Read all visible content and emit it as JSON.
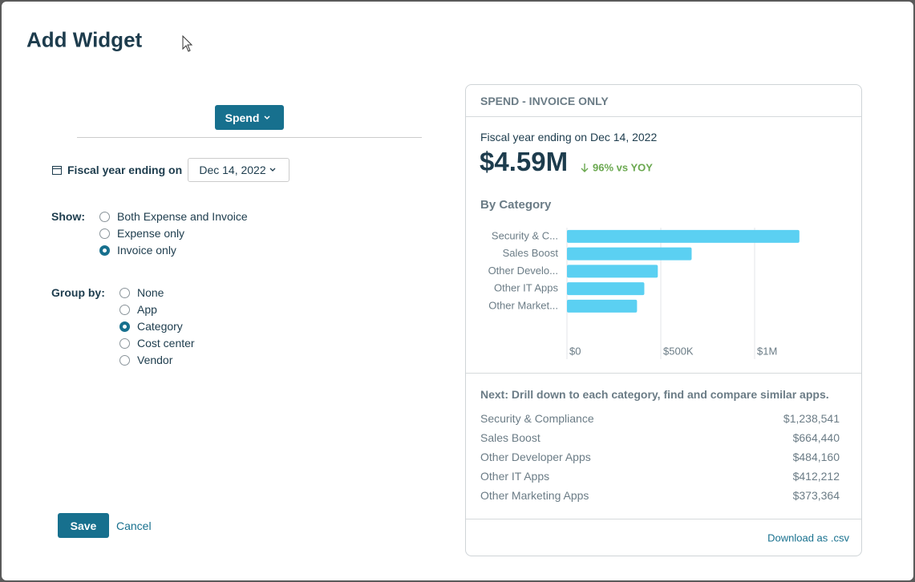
{
  "dialog": {
    "title": "Add Widget"
  },
  "form": {
    "metric_button": "Spend",
    "fiscal_label": "Fiscal year ending on",
    "fiscal_date": "Dec 14, 2022",
    "show_label": "Show:",
    "show_options": [
      "Both Expense and Invoice",
      "Expense only",
      "Invoice only"
    ],
    "show_selected": 2,
    "group_label": "Group by:",
    "group_options": [
      "None",
      "App",
      "Category",
      "Cost center",
      "Vendor"
    ],
    "group_selected": 2,
    "save": "Save",
    "cancel": "Cancel"
  },
  "preview": {
    "header": "SPEND - INVOICE ONLY",
    "subtitle": "Fiscal year ending on Dec 14, 2022",
    "total": "$4.59M",
    "change": "96% vs YOY",
    "next_text": "Next: Drill down to each category, find and compare similar apps.",
    "category_names": [
      "Security & Compliance",
      "Sales Boost",
      "Other Developer Apps",
      "Other IT Apps",
      "Other Marketing Apps"
    ],
    "download": "Download as .csv"
  },
  "chart_data": {
    "type": "bar",
    "orientation": "horizontal",
    "title": "By Category",
    "categories": [
      "Security & C...",
      "Sales Boost",
      "Other Develo...",
      "Other IT Apps",
      "Other Market..."
    ],
    "values": [
      1238541,
      664440,
      484160,
      412212,
      373364
    ],
    "value_labels": [
      "$1,238,541",
      "$664,440",
      "$484,160",
      "$412,212",
      "$373,364"
    ],
    "color": "#5bd0f2",
    "xlim": [
      0,
      1500000
    ],
    "xticks": [
      {
        "value": 0,
        "label": "$0"
      },
      {
        "value": 500000,
        "label": "$500K"
      },
      {
        "value": 1000000,
        "label": "$1M"
      }
    ],
    "grid": true
  }
}
